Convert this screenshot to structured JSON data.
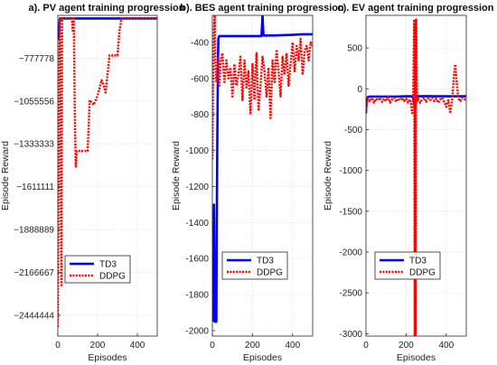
{
  "figure": {
    "panels": [
      {
        "title": "a). PV agent training progression",
        "xlabel": "Episodes",
        "ylabel": "Episode Reward",
        "xticks": [
          "0",
          "200",
          "400"
        ],
        "yticks": [
          "−777778",
          "−1055556",
          "−1333333",
          "−1611111",
          "−1888889",
          "−2166667",
          "−2444444"
        ],
        "legend": [
          "TD3",
          "DDPG"
        ]
      },
      {
        "title": "b). BES agent training progression",
        "xlabel": "Episodes",
        "ylabel": "Episode Reward",
        "xticks": [
          "0",
          "200",
          "400"
        ],
        "yticks": [
          "-400",
          "-600",
          "-800",
          "-1000",
          "-1200",
          "-1400",
          "-1600",
          "-1800",
          "-2000"
        ],
        "legend": [
          "TD3",
          "DDPG"
        ]
      },
      {
        "title": "c). EV agent training progression",
        "xlabel": "Episodes",
        "ylabel": "Episode Reward",
        "xticks": [
          "0",
          "200",
          "400"
        ],
        "yticks": [
          "500",
          "0",
          "-500",
          "-1000",
          "-1500",
          "-2000",
          "-2500",
          "-3000"
        ],
        "legend": [
          "TD3",
          "DDPG"
        ]
      }
    ]
  },
  "chart_data": [
    {
      "type": "line",
      "title": "a). PV agent training progression",
      "xlabel": "Episodes",
      "ylabel": "Episode Reward",
      "xlim": [
        0,
        500
      ],
      "ylim": [
        -2580000,
        -500000
      ],
      "grid": true,
      "legend_position": "bottom-left",
      "series": [
        {
          "name": "TD3",
          "color": "#0000ff",
          "style": "solid",
          "x": [
            0,
            2,
            5,
            8,
            10,
            500
          ],
          "y": [
            -560000,
            -650000,
            -600000,
            -560000,
            -520000,
            -520000
          ]
        },
        {
          "name": "DDPG",
          "color": "#ff0000",
          "style": "dotted",
          "x": [
            0,
            2,
            4,
            6,
            8,
            10,
            12,
            14,
            16,
            18,
            20,
            22,
            40,
            60,
            70,
            75,
            80,
            85,
            90,
            95,
            100,
            110,
            130,
            150,
            160,
            180,
            200,
            220,
            230,
            240,
            260,
            280,
            300,
            310,
            320,
            500
          ],
          "y": [
            -2520000,
            -2000000,
            -1500000,
            -1000000,
            -700000,
            -520000,
            -800000,
            -1300000,
            -1900000,
            -2250000,
            -1400000,
            -520000,
            -520000,
            -520000,
            -520000,
            -600000,
            -520000,
            -1100000,
            -1480000,
            -1380000,
            -1380000,
            -1380000,
            -1380000,
            -1380000,
            -1050000,
            -1080000,
            -1020000,
            -920000,
            -950000,
            -1000000,
            -760000,
            -760000,
            -760000,
            -600000,
            -520000,
            -520000
          ]
        }
      ]
    },
    {
      "type": "line",
      "title": "b). BES agent training progression",
      "xlabel": "Episodes",
      "ylabel": "Episode Reward",
      "xlim": [
        0,
        500
      ],
      "ylim": [
        -2030,
        -250
      ],
      "grid": true,
      "legend_position": "bottom-right",
      "series": [
        {
          "name": "TD3",
          "color": "#0000ff",
          "style": "solid",
          "x": [
            0,
            4,
            8,
            12,
            16,
            20,
            22,
            25,
            28,
            30,
            32,
            35,
            40,
            60,
            100,
            150,
            200,
            245,
            248,
            250,
            252,
            255,
            300,
            350,
            400,
            450,
            500
          ],
          "y": [
            -1950,
            -1400,
            -1300,
            -1950,
            -1950,
            -1950,
            -1400,
            -900,
            -500,
            -380,
            -370,
            -365,
            -365,
            -365,
            -365,
            -365,
            -365,
            -365,
            -300,
            -250,
            -300,
            -362,
            -362,
            -360,
            -358,
            -355,
            -355
          ]
        },
        {
          "name": "DDPG",
          "color": "#ff0000",
          "style": "dotted",
          "x": [
            0,
            3,
            6,
            9,
            12,
            15,
            20,
            25,
            30,
            35,
            40,
            50,
            60,
            70,
            80,
            90,
            100,
            110,
            120,
            130,
            140,
            150,
            160,
            170,
            180,
            190,
            200,
            210,
            220,
            230,
            240,
            250,
            260,
            270,
            280,
            290,
            300,
            310,
            320,
            330,
            340,
            350,
            360,
            370,
            380,
            390,
            400,
            410,
            420,
            430,
            440,
            450,
            460,
            470,
            480,
            490,
            500
          ],
          "y": [
            -1050,
            -650,
            -450,
            -300,
            -250,
            -500,
            -620,
            -560,
            -480,
            -640,
            -520,
            -460,
            -620,
            -500,
            -600,
            -540,
            -700,
            -520,
            -640,
            -580,
            -480,
            -720,
            -500,
            -650,
            -560,
            -800,
            -520,
            -720,
            -460,
            -780,
            -640,
            -480,
            -560,
            -700,
            -540,
            -820,
            -500,
            -620,
            -440,
            -560,
            -700,
            -480,
            -580,
            -460,
            -640,
            -520,
            -400,
            -560,
            -420,
            -500,
            -380,
            -580,
            -450,
            -420,
            -500,
            -400,
            -420
          ]
        }
      ]
    },
    {
      "type": "line",
      "title": "c). EV agent training progression",
      "xlabel": "Episodes",
      "ylabel": "Episode Reward",
      "xlim": [
        0,
        500
      ],
      "ylim": [
        -3030,
        900
      ],
      "grid": true,
      "legend_position": "bottom-right",
      "series": [
        {
          "name": "TD3",
          "color": "#0000ff",
          "style": "solid",
          "x": [
            0,
            2,
            5,
            8,
            10,
            20,
            60,
            100,
            150,
            200,
            230,
            240,
            245,
            250,
            255,
            260,
            300,
            350,
            400,
            450,
            500
          ],
          "y": [
            -300,
            -150,
            -120,
            -110,
            -100,
            -95,
            -95,
            -95,
            -95,
            -92,
            -92,
            -150,
            -250,
            -92,
            -92,
            -92,
            -90,
            -92,
            -92,
            -92,
            -92
          ]
        },
        {
          "name": "DDPG",
          "color": "#ff0000",
          "style": "dotted",
          "x": [
            0,
            10,
            20,
            30,
            40,
            50,
            60,
            70,
            80,
            90,
            100,
            110,
            120,
            130,
            140,
            150,
            160,
            170,
            180,
            190,
            200,
            210,
            220,
            225,
            230,
            235,
            240,
            243,
            245,
            247,
            250,
            255,
            260,
            270,
            280,
            290,
            300,
            310,
            320,
            330,
            340,
            350,
            360,
            370,
            380,
            390,
            400,
            410,
            420,
            430,
            440,
            445,
            450,
            460,
            470,
            480,
            490,
            500
          ],
          "y": [
            -250,
            -120,
            -150,
            -110,
            -170,
            -120,
            -140,
            -110,
            -160,
            -120,
            -150,
            -100,
            -170,
            -130,
            -110,
            -160,
            -120,
            -140,
            -110,
            -150,
            -120,
            -170,
            -130,
            -200,
            -300,
            -150,
            850,
            -3030,
            800,
            -3030,
            850,
            -150,
            -120,
            -170,
            -130,
            -110,
            -160,
            -120,
            -140,
            -110,
            -150,
            -120,
            -170,
            -130,
            -110,
            -160,
            -220,
            -140,
            -300,
            -120,
            200,
            300,
            150,
            -120,
            -150,
            -110,
            -130,
            -120
          ]
        }
      ]
    }
  ]
}
